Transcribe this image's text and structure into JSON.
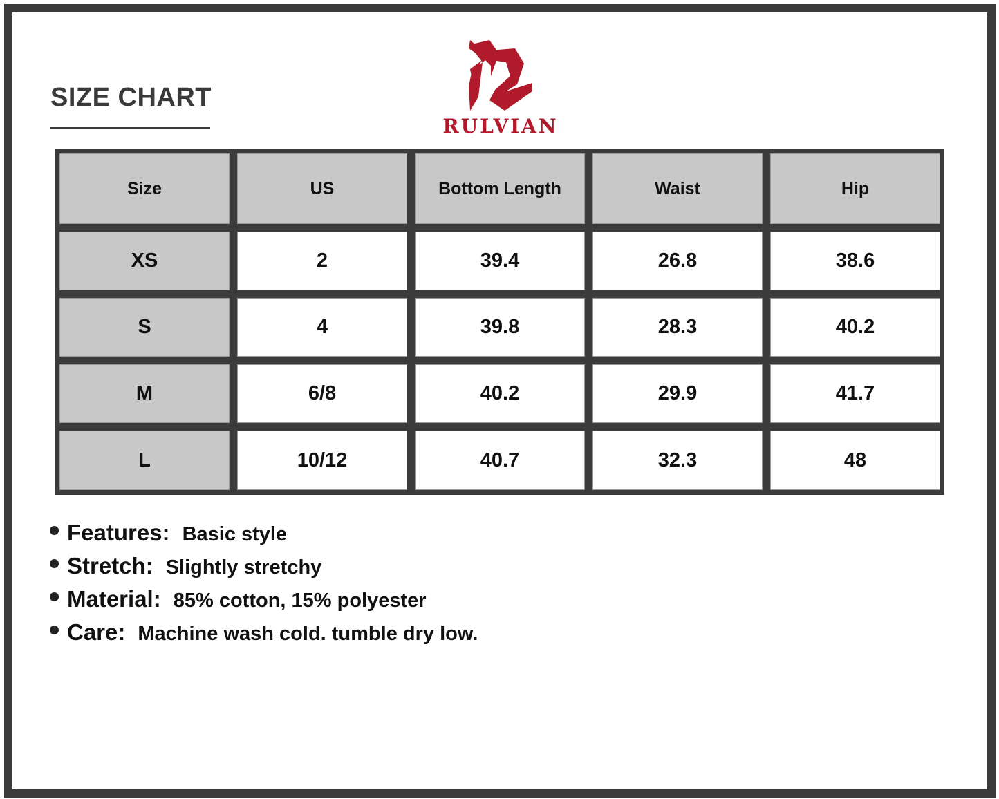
{
  "title": "SIZE CHART",
  "brand": {
    "name": "RULVIAN",
    "color": "#b3192b"
  },
  "table": {
    "headers": [
      "Size",
      "US",
      "Bottom Length",
      "Waist",
      "Hip"
    ],
    "rows": [
      [
        "XS",
        "2",
        "39.4",
        "26.8",
        "38.6"
      ],
      [
        "S",
        "4",
        "39.8",
        "28.3",
        "40.2"
      ],
      [
        "M",
        "6/8",
        "40.2",
        "29.9",
        "41.7"
      ],
      [
        "L",
        "10/12",
        "40.7",
        "32.3",
        "48"
      ]
    ]
  },
  "features": [
    {
      "label": "Features:",
      "value": "Basic style"
    },
    {
      "label": "Stretch:",
      "value": "Slightly stretchy"
    },
    {
      "label": "Material:",
      "value": "85% cotton, 15% polyester"
    },
    {
      "label": "Care:",
      "value": "Machine wash cold. tumble dry low."
    }
  ]
}
